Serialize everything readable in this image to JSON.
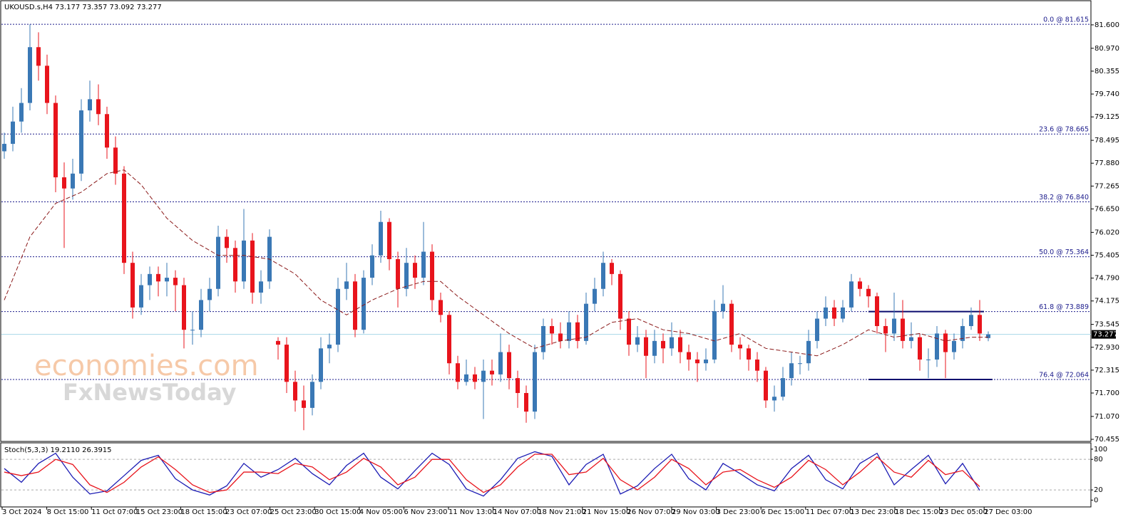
{
  "chart_data": {
    "type": "candlestick",
    "title": "UKOUSD.s,H4  73.177 73.357 73.092 73.277",
    "watermark": [
      "economies.com",
      "FxNewsToday"
    ],
    "bull_color": "#3a78b5",
    "bear_color": "#e8141c",
    "ylim": [
      70.398,
      82.23
    ],
    "yticks": [
      {
        "value": 81.6,
        "label": "81.600"
      },
      {
        "value": 80.97,
        "label": "80.970"
      },
      {
        "value": 80.355,
        "label": "80.355"
      },
      {
        "value": 79.74,
        "label": "79.740"
      },
      {
        "value": 79.125,
        "label": "79.125"
      },
      {
        "value": 78.495,
        "label": "78.495"
      },
      {
        "value": 77.88,
        "label": "77.880"
      },
      {
        "value": 77.265,
        "label": "77.265"
      },
      {
        "value": 76.65,
        "label": "76.650"
      },
      {
        "value": 76.02,
        "label": "76.020"
      },
      {
        "value": 75.405,
        "label": "75.405"
      },
      {
        "value": 74.79,
        "label": "74.790"
      },
      {
        "value": 74.175,
        "label": "74.175"
      },
      {
        "value": 73.545,
        "label": "73.545"
      },
      {
        "value": 72.93,
        "label": "72.930"
      },
      {
        "value": 72.315,
        "label": "72.315"
      },
      {
        "value": 71.7,
        "label": "71.700"
      },
      {
        "value": 71.07,
        "label": "71.070"
      },
      {
        "value": 70.455,
        "label": "70.455"
      }
    ],
    "x_labels": [
      "3 Oct 2024",
      "8 Oct 15:00",
      "11 Oct 07:00",
      "15 Oct 23:00",
      "18 Oct 15:00",
      "23 Oct 07:00",
      "25 Oct 23:00",
      "30 Oct 15:00",
      "4 Nov 05:00",
      "6 Nov 23:00",
      "11 Nov 13:00",
      "14 Nov 07:00",
      "18 Nov 21:00",
      "21 Nov 15:00",
      "26 Nov 07:00",
      "29 Nov 03:00",
      "3 Dec 23:00",
      "6 Dec 15:00",
      "11 Dec 07:00",
      "13 Dec 23:00",
      "18 Dec 15:00",
      "23 Dec 05:00",
      "27 Dec 03:00"
    ],
    "fib_levels": [
      {
        "value": 81.615,
        "label": "0.0 @ 81.615"
      },
      {
        "value": 78.665,
        "label": "23.6 @ 78.665"
      },
      {
        "value": 76.84,
        "label": "38.2 @ 76.840"
      },
      {
        "value": 75.364,
        "label": "50.0 @ 75.364"
      },
      {
        "value": 73.889,
        "label": "61.8 @ 73.889"
      },
      {
        "value": 72.064,
        "label": "76.4 @ 72.064"
      }
    ],
    "fib_color": "#1c1c8c",
    "range_lines": [
      {
        "y": 73.889,
        "x": [
          101,
          114.5
        ]
      },
      {
        "y": 72.064,
        "x": [
          101,
          115.5
        ]
      }
    ],
    "last_price": 73.277,
    "candles": [
      [
        78.2,
        78.7,
        78.0,
        78.4
      ],
      [
        78.4,
        79.4,
        78.2,
        79.0
      ],
      [
        79.0,
        79.9,
        78.7,
        79.5
      ],
      [
        79.5,
        81.615,
        79.3,
        81.0
      ],
      [
        81.0,
        81.4,
        80.1,
        80.5
      ],
      [
        80.5,
        80.8,
        79.2,
        79.5
      ],
      [
        79.5,
        79.7,
        77.1,
        77.5
      ],
      [
        77.5,
        77.9,
        75.6,
        77.2
      ],
      [
        77.2,
        78.0,
        76.9,
        77.6
      ],
      [
        77.6,
        79.6,
        77.4,
        79.3
      ],
      [
        79.3,
        80.1,
        79.0,
        79.6
      ],
      [
        79.6,
        80.0,
        78.9,
        79.2
      ],
      [
        79.2,
        79.4,
        78.0,
        78.3
      ],
      [
        78.3,
        78.6,
        77.3,
        77.6
      ],
      [
        77.6,
        77.8,
        74.9,
        75.2
      ],
      [
        75.2,
        75.5,
        73.7,
        74.0
      ],
      [
        74.0,
        74.9,
        73.8,
        74.6
      ],
      [
        74.6,
        75.1,
        74.2,
        74.9
      ],
      [
        74.9,
        75.1,
        74.3,
        74.7
      ],
      [
        74.7,
        75.2,
        74.3,
        74.8
      ],
      [
        74.8,
        75.0,
        73.9,
        74.6
      ],
      [
        74.6,
        74.8,
        72.9,
        73.4
      ],
      [
        73.4,
        73.9,
        73.0,
        73.4
      ],
      [
        73.4,
        74.5,
        73.2,
        74.2
      ],
      [
        74.2,
        74.8,
        73.9,
        74.5
      ],
      [
        74.5,
        76.2,
        74.3,
        75.9
      ],
      [
        75.9,
        76.1,
        75.2,
        75.6
      ],
      [
        75.6,
        75.8,
        74.4,
        74.7
      ],
      [
        74.7,
        76.65,
        74.5,
        75.8
      ],
      [
        75.8,
        76.0,
        74.1,
        74.4
      ],
      [
        74.4,
        75.0,
        74.1,
        74.7
      ],
      [
        74.7,
        76.1,
        74.5,
        75.9
      ],
      [
        73.1,
        73.2,
        72.6,
        73.0
      ],
      [
        73.0,
        73.2,
        71.7,
        72.0
      ],
      [
        72.0,
        72.3,
        71.2,
        71.5
      ],
      [
        71.5,
        71.9,
        70.7,
        71.3
      ],
      [
        71.3,
        72.2,
        71.1,
        72.0
      ],
      [
        72.0,
        73.2,
        71.8,
        72.9
      ],
      [
        72.9,
        73.3,
        72.5,
        73.0
      ],
      [
        73.0,
        74.8,
        72.8,
        74.5
      ],
      [
        74.5,
        75.2,
        74.2,
        74.7
      ],
      [
        74.7,
        74.9,
        73.2,
        73.4
      ],
      [
        73.4,
        75.0,
        73.3,
        74.8
      ],
      [
        74.8,
        75.7,
        74.6,
        75.4
      ],
      [
        75.4,
        76.6,
        75.2,
        76.3
      ],
      [
        76.3,
        76.4,
        75.0,
        75.3
      ],
      [
        75.3,
        75.5,
        74.0,
        74.5
      ],
      [
        74.5,
        75.6,
        74.3,
        75.2
      ],
      [
        75.2,
        75.4,
        74.5,
        74.8
      ],
      [
        74.8,
        76.3,
        74.6,
        75.5
      ],
      [
        75.5,
        75.7,
        73.9,
        74.2
      ],
      [
        74.2,
        74.4,
        73.6,
        73.8
      ],
      [
        73.8,
        73.9,
        72.2,
        72.5
      ],
      [
        72.5,
        72.7,
        71.8,
        72.0
      ],
      [
        72.0,
        72.6,
        71.9,
        72.2
      ],
      [
        72.2,
        72.4,
        71.8,
        72.0
      ],
      [
        72.0,
        72.6,
        71.0,
        72.3
      ],
      [
        72.3,
        72.6,
        71.9,
        72.2
      ],
      [
        72.2,
        73.3,
        72.0,
        72.8
      ],
      [
        72.8,
        73.0,
        71.8,
        72.1
      ],
      [
        72.1,
        72.3,
        71.3,
        71.7
      ],
      [
        71.7,
        71.9,
        70.9,
        71.2
      ],
      [
        71.2,
        73.0,
        71.0,
        72.8
      ],
      [
        72.8,
        73.7,
        72.6,
        73.5
      ],
      [
        73.5,
        73.7,
        73.0,
        73.3
      ],
      [
        73.3,
        73.6,
        72.9,
        73.1
      ],
      [
        73.1,
        73.9,
        72.9,
        73.6
      ],
      [
        73.6,
        73.8,
        72.9,
        73.1
      ],
      [
        73.1,
        74.4,
        73.0,
        74.1
      ],
      [
        74.1,
        74.8,
        73.9,
        74.5
      ],
      [
        74.5,
        75.5,
        74.3,
        75.2
      ],
      [
        75.2,
        75.3,
        74.6,
        74.9
      ],
      [
        74.9,
        75.0,
        73.4,
        73.7
      ],
      [
        73.7,
        73.9,
        72.7,
        73.0
      ],
      [
        73.0,
        73.5,
        72.8,
        73.2
      ],
      [
        73.2,
        73.4,
        72.1,
        72.7
      ],
      [
        72.7,
        73.4,
        72.5,
        73.1
      ],
      [
        73.1,
        73.3,
        72.5,
        72.9
      ],
      [
        72.9,
        73.6,
        72.7,
        73.2
      ],
      [
        73.2,
        73.4,
        72.5,
        72.8
      ],
      [
        72.8,
        73.0,
        72.3,
        72.6
      ],
      [
        72.6,
        72.8,
        72.0,
        72.5
      ],
      [
        72.5,
        72.9,
        72.3,
        72.6
      ],
      [
        72.6,
        74.2,
        72.5,
        73.9
      ],
      [
        73.9,
        74.6,
        73.7,
        74.1
      ],
      [
        74.1,
        74.2,
        72.8,
        73.0
      ],
      [
        73.0,
        73.2,
        72.6,
        72.9
      ],
      [
        72.9,
        73.0,
        72.3,
        72.6
      ],
      [
        72.6,
        72.8,
        72.0,
        72.3
      ],
      [
        72.3,
        72.4,
        71.3,
        71.5
      ],
      [
        71.5,
        71.9,
        71.2,
        71.6
      ],
      [
        71.6,
        72.4,
        71.5,
        72.1
      ],
      [
        72.1,
        72.8,
        71.9,
        72.5
      ],
      [
        72.5,
        72.7,
        72.2,
        72.5
      ],
      [
        72.5,
        73.4,
        72.3,
        73.1
      ],
      [
        73.1,
        73.9,
        72.9,
        73.7
      ],
      [
        73.7,
        74.3,
        73.5,
        74.0
      ],
      [
        74.0,
        74.2,
        73.5,
        73.7
      ],
      [
        73.7,
        74.2,
        73.6,
        74.0
      ],
      [
        74.0,
        74.9,
        73.9,
        74.7
      ],
      [
        74.7,
        74.8,
        74.3,
        74.5
      ],
      [
        74.5,
        74.6,
        74.0,
        74.3
      ],
      [
        74.3,
        74.4,
        73.3,
        73.5
      ],
      [
        73.5,
        73.7,
        72.8,
        73.3
      ],
      [
        73.3,
        74.4,
        73.1,
        73.7
      ],
      [
        73.7,
        74.2,
        72.9,
        73.1
      ],
      [
        73.1,
        73.6,
        72.9,
        73.2
      ],
      [
        73.2,
        73.3,
        72.3,
        72.6
      ],
      [
        72.6,
        72.9,
        72.1,
        72.6
      ],
      [
        72.6,
        73.5,
        72.4,
        73.3
      ],
      [
        73.3,
        73.4,
        72.1,
        72.8
      ],
      [
        72.8,
        73.3,
        72.6,
        73.1
      ],
      [
        73.1,
        73.7,
        72.9,
        73.5
      ],
      [
        73.5,
        74.0,
        73.4,
        73.8
      ],
      [
        73.8,
        74.2,
        73.1,
        73.3
      ],
      [
        73.177,
        73.357,
        73.092,
        73.277
      ]
    ],
    "ma": {
      "color": "#8b1a1a",
      "x": [
        0,
        3,
        6,
        9,
        12,
        14,
        16,
        19,
        22,
        25,
        28,
        31,
        34,
        37,
        40,
        43,
        46,
        49,
        51,
        53,
        56,
        59,
        62,
        65,
        68,
        71,
        74,
        77,
        80,
        83,
        86,
        89,
        92,
        95,
        98,
        101,
        104,
        107,
        110,
        113,
        115
      ],
      "values": [
        74.2,
        75.9,
        76.8,
        77.1,
        77.6,
        77.7,
        77.3,
        76.4,
        75.8,
        75.4,
        75.4,
        75.3,
        74.9,
        74.2,
        73.8,
        74.2,
        74.5,
        74.7,
        74.7,
        74.3,
        73.8,
        73.3,
        72.9,
        73.1,
        73.2,
        73.6,
        73.7,
        73.4,
        73.3,
        73.1,
        73.3,
        72.9,
        72.8,
        72.7,
        73.0,
        73.4,
        73.2,
        73.3,
        73.1,
        73.2,
        73.2
      ]
    },
    "stoch": {
      "label": "Stoch(5,3,3) 19.2110 26.3915",
      "ylim": [
        -12,
        111
      ],
      "yticks": [
        100,
        80,
        20,
        0
      ],
      "levels": [
        80,
        20
      ],
      "x": [
        0,
        2,
        4,
        6,
        8,
        10,
        12,
        14,
        16,
        18,
        20,
        22,
        24,
        26,
        28,
        30,
        32,
        34,
        36,
        38,
        40,
        42,
        44,
        46,
        48,
        50,
        52,
        54,
        56,
        58,
        60,
        62,
        64,
        66,
        68,
        70,
        72,
        74,
        76,
        78,
        80,
        82,
        84,
        86,
        88,
        90,
        92,
        94,
        96,
        98,
        100,
        102,
        104,
        106,
        108,
        110,
        112,
        114
      ],
      "series": [
        {
          "color": "#1c1cb4",
          "values": [
            62,
            35,
            72,
            92,
            45,
            12,
            18,
            48,
            78,
            88,
            42,
            20,
            10,
            28,
            72,
            45,
            60,
            82,
            52,
            30,
            68,
            92,
            45,
            22,
            58,
            92,
            70,
            22,
            8,
            40,
            82,
            95,
            86,
            30,
            70,
            90,
            12,
            28,
            62,
            90,
            42,
            20,
            72,
            52,
            30,
            18,
            62,
            88,
            40,
            22,
            72,
            92,
            30,
            60,
            88,
            32,
            72,
            19.211
          ]
        },
        {
          "color": "#e8141c",
          "values": [
            55,
            48,
            55,
            80,
            70,
            30,
            15,
            35,
            65,
            85,
            60,
            30,
            15,
            20,
            55,
            55,
            52,
            72,
            65,
            40,
            55,
            82,
            65,
            30,
            45,
            80,
            80,
            40,
            15,
            30,
            65,
            90,
            90,
            50,
            55,
            82,
            40,
            20,
            45,
            80,
            62,
            30,
            55,
            60,
            40,
            25,
            45,
            78,
            60,
            30,
            55,
            85,
            55,
            45,
            78,
            50,
            58,
            26.3915
          ]
        }
      ]
    }
  }
}
